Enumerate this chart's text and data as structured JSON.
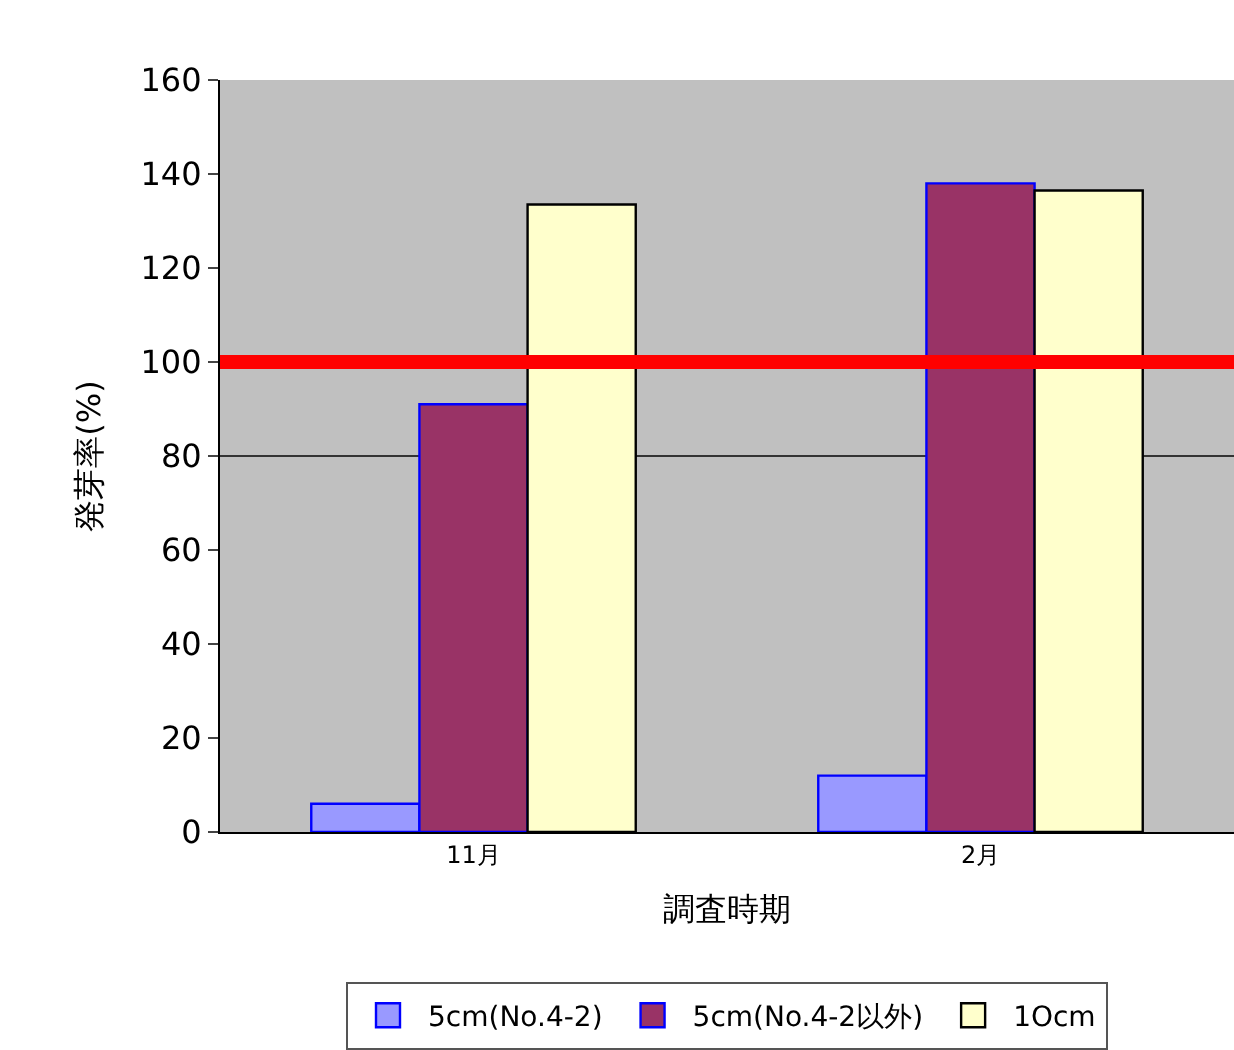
{
  "chart_data": {
    "type": "bar",
    "xlabel": "調査時期",
    "ylabel": "発芽率(%)",
    "categories": [
      "11月",
      "2月"
    ],
    "series": [
      {
        "name": "5cm(No.4-2)",
        "color": "#9999ff",
        "values": [
          6,
          12
        ]
      },
      {
        "name": "5cm(No.4-2以外)",
        "color": "#993366",
        "values": [
          91,
          138
        ]
      },
      {
        "name": "1Ocm",
        "color": "#ffffcc",
        "values": [
          133.5,
          136.5
        ]
      }
    ],
    "ylim": [
      0,
      160
    ],
    "yticks": [
      0,
      20,
      40,
      60,
      80,
      100,
      120,
      140,
      160
    ],
    "ref_lines": [
      {
        "axis": "y",
        "value": 80,
        "color": "#333333"
      },
      {
        "axis": "y",
        "value": 100,
        "color": "#ff0000"
      }
    ],
    "grid": false,
    "legend": "bottom"
  }
}
